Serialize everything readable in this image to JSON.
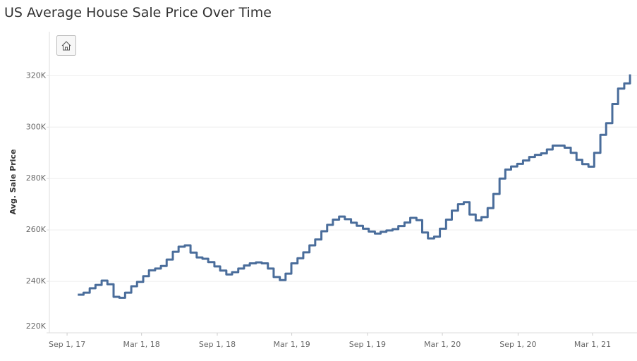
{
  "chart_data": {
    "type": "step-line",
    "title": "US Average House Sale Price Over Time",
    "y_label": "Avg. Sale Price",
    "x": [
      "2017-09-27",
      "2017-10-11",
      "2017-10-26",
      "2017-11-09",
      "2017-11-24",
      "2017-12-08",
      "2017-12-23",
      "2018-01-06",
      "2018-01-20",
      "2018-02-04",
      "2018-02-18",
      "2018-03-05",
      "2018-03-19",
      "2018-04-03",
      "2018-04-17",
      "2018-05-01",
      "2018-05-16",
      "2018-05-30",
      "2018-06-14",
      "2018-06-28",
      "2018-07-13",
      "2018-07-27",
      "2018-08-10",
      "2018-08-25",
      "2018-09-08",
      "2018-09-23",
      "2018-10-07",
      "2018-10-22",
      "2018-11-05",
      "2018-11-19",
      "2018-12-04",
      "2018-12-18",
      "2019-01-02",
      "2019-01-16",
      "2019-01-31",
      "2019-02-14",
      "2019-02-28",
      "2019-03-15",
      "2019-03-29",
      "2019-04-13",
      "2019-04-27",
      "2019-05-12",
      "2019-05-26",
      "2019-06-09",
      "2019-06-24",
      "2019-07-08",
      "2019-07-23",
      "2019-08-06",
      "2019-08-21",
      "2019-09-04",
      "2019-09-19",
      "2019-10-03",
      "2019-10-17",
      "2019-11-01",
      "2019-11-15",
      "2019-11-30",
      "2019-12-14",
      "2019-12-29",
      "2020-01-12",
      "2020-01-26",
      "2020-02-10",
      "2020-02-24",
      "2020-03-10",
      "2020-03-24",
      "2020-04-08",
      "2020-04-22",
      "2020-05-06",
      "2020-05-21",
      "2020-06-04",
      "2020-06-19",
      "2020-07-03",
      "2020-07-18",
      "2020-08-01",
      "2020-08-15",
      "2020-08-30",
      "2020-09-13",
      "2020-09-28",
      "2020-10-12",
      "2020-10-27",
      "2020-11-10",
      "2020-11-24",
      "2020-12-09",
      "2020-12-23",
      "2021-01-07",
      "2021-01-21",
      "2021-02-04",
      "2021-02-19",
      "2021-03-05",
      "2021-03-20",
      "2021-04-03",
      "2021-04-18",
      "2021-05-02",
      "2021-05-17",
      "2021-05-31"
    ],
    "series": [
      {
        "name": "Avg. Sale Price",
        "color": "#4a6d9b",
        "values": [
          234800,
          235600,
          237300,
          238600,
          240300,
          238900,
          234000,
          233600,
          235600,
          238100,
          239800,
          242000,
          244300,
          245000,
          246000,
          248500,
          251500,
          253500,
          254000,
          251200,
          249300,
          248800,
          247500,
          245800,
          244200,
          242700,
          243600,
          245000,
          246200,
          247000,
          247400,
          247000,
          245000,
          241700,
          240500,
          243000,
          247000,
          249000,
          251300,
          254000,
          256300,
          259500,
          262000,
          264000,
          265200,
          264200,
          262800,
          261600,
          260500,
          259400,
          258600,
          259300,
          259800,
          260300,
          261500,
          262900,
          264700,
          263800,
          259000,
          256700,
          257400,
          260500,
          264000,
          267500,
          270000,
          270800,
          266000,
          263700,
          265000,
          268500,
          274000,
          280000,
          283500,
          284700,
          285700,
          287000,
          288400,
          289200,
          289800,
          291300,
          292800,
          292800,
          292000,
          290000,
          287300,
          285600,
          284600,
          290000,
          297000,
          301500,
          309000,
          315000,
          317000,
          320500
        ]
      }
    ],
    "xlim": [
      "2017-07-20",
      "2021-06-17"
    ],
    "xticks": [
      {
        "value": "2017-09-01",
        "label": "Sep 1, 17"
      },
      {
        "value": "2018-03-01",
        "label": "Mar 1, 18"
      },
      {
        "value": "2018-09-01",
        "label": "Sep 1, 18"
      },
      {
        "value": "2019-03-01",
        "label": "Mar 1, 19"
      },
      {
        "value": "2019-09-01",
        "label": "Sep 1, 19"
      },
      {
        "value": "2020-03-01",
        "label": "Mar 1, 20"
      },
      {
        "value": "2020-09-01",
        "label": "Sep 1, 20"
      },
      {
        "value": "2021-03-01",
        "label": "Mar 1, 21"
      }
    ],
    "ylim": [
      220000,
      336000
    ],
    "yticks": [
      {
        "value": 220000,
        "label": "220K"
      },
      {
        "value": 240000,
        "label": "240K"
      },
      {
        "value": 260000,
        "label": "260K"
      },
      {
        "value": 280000,
        "label": "280K"
      },
      {
        "value": 300000,
        "label": "300K"
      },
      {
        "value": 320000,
        "label": "320K"
      }
    ],
    "grid": true
  }
}
